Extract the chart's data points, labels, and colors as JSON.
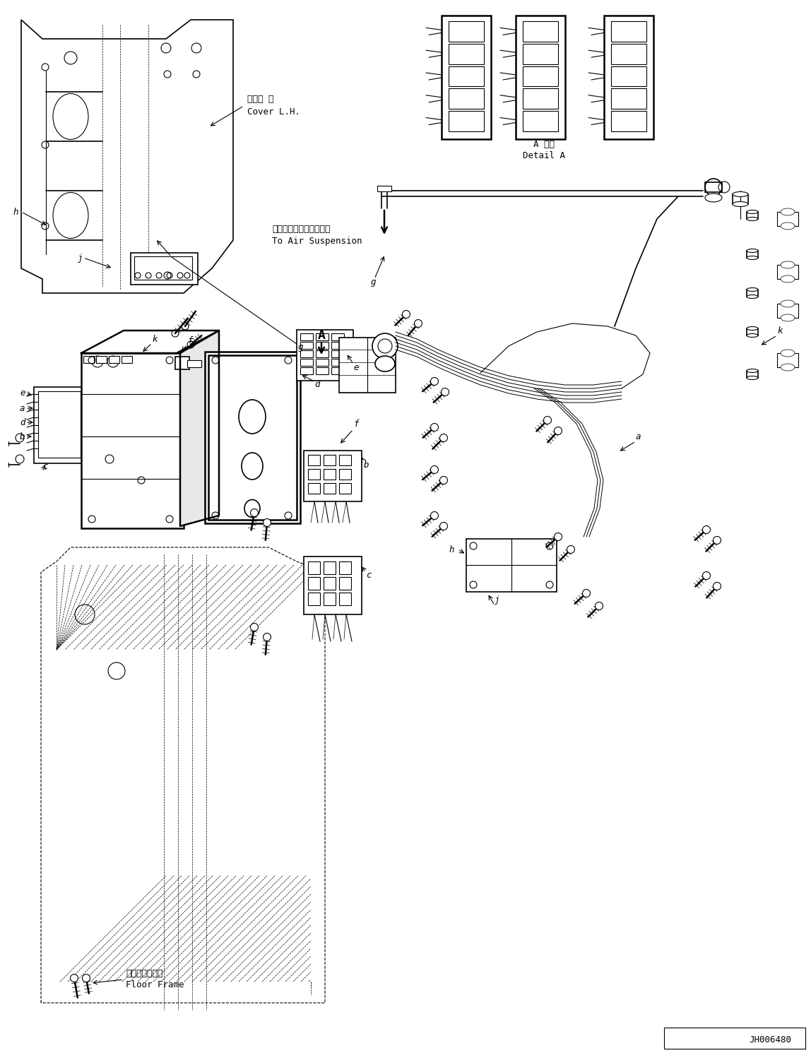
{
  "background_color": "#ffffff",
  "line_color": "#000000",
  "text_color": "#000000",
  "figsize": [
    11.48,
    14.91
  ],
  "dpi": 100,
  "detail_a_label": "A 詳細\nDetail A",
  "air_suspension_jp": "エアーサスペンションへ",
  "air_suspension_en": "To Air Suspension",
  "cover_lh_jp": "カバー 左",
  "cover_lh_en": "Cover L.H.",
  "floor_frame_jp": "フロアフレーム",
  "floor_frame_en": "Floor Frame",
  "part_id": "JH006480",
  "detail_a_jp": "A 詳細",
  "detail_a_en": "Detail A"
}
